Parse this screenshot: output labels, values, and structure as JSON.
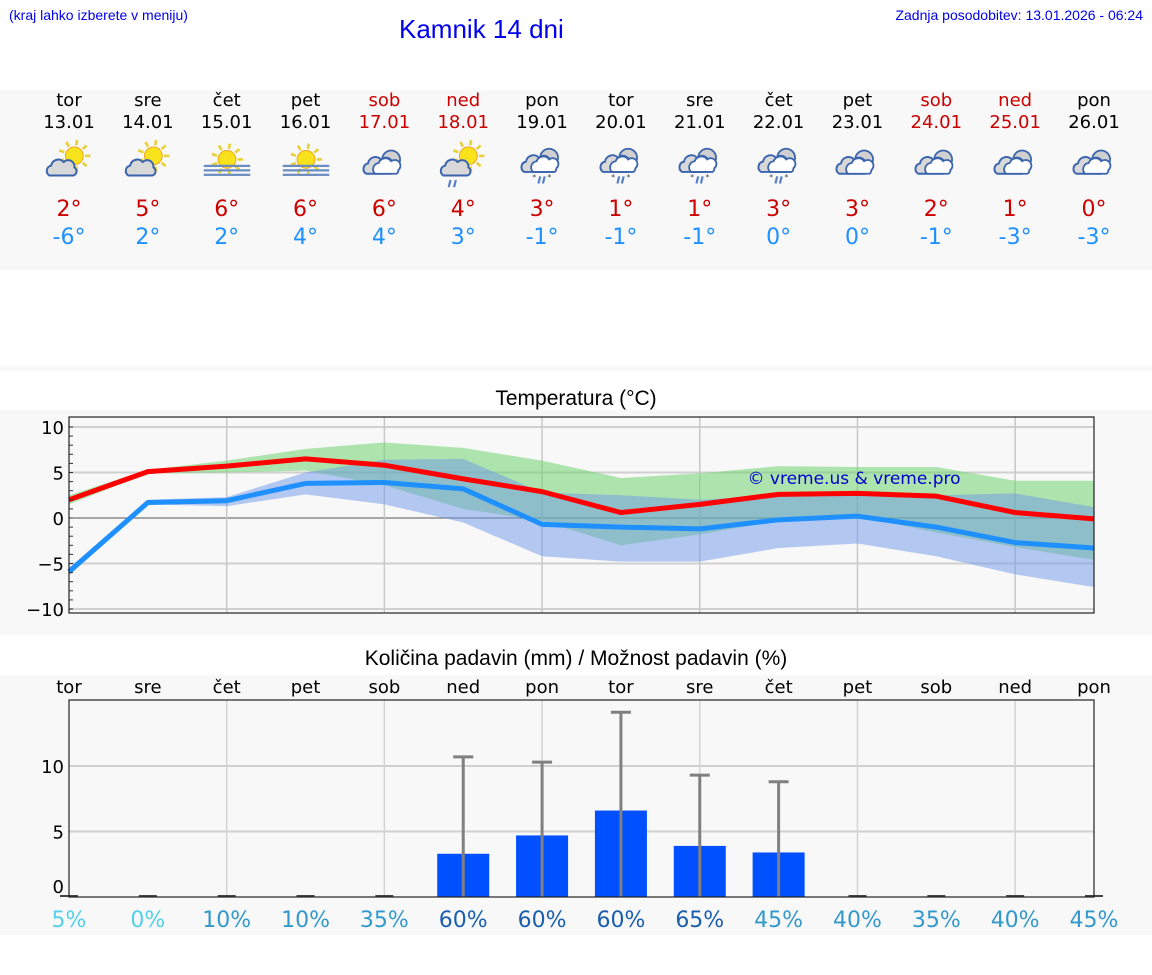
{
  "header": {
    "menu_hint": "(kraj lahko izberete v meniju)",
    "title": "Kamnik 14 dni",
    "last_update": "Zadnja posodobitev: 13.01.2026 - 06:24"
  },
  "colors": {
    "link_blue": "#0000ee",
    "max_temp_red": "#cc0000",
    "min_temp_blue": "#1e90ff",
    "max_line": "#ff0000",
    "min_line": "#1e90ff",
    "max_band": "#aee8ae",
    "min_band": "#adc8f2",
    "overlap_band": "#7ec9a8",
    "precip_bar": "#0050ff",
    "whisker": "#808080"
  },
  "days": [
    {
      "name": "tor",
      "date": "13.01",
      "weekend": false,
      "icon": "sun-cloud-icon",
      "max": "2°",
      "min": "-6°"
    },
    {
      "name": "sre",
      "date": "14.01",
      "weekend": false,
      "icon": "sun-cloud-icon",
      "max": "5°",
      "min": "2°"
    },
    {
      "name": "čet",
      "date": "15.01",
      "weekend": false,
      "icon": "sun-fog-icon",
      "max": "6°",
      "min": "2°"
    },
    {
      "name": "pet",
      "date": "16.01",
      "weekend": false,
      "icon": "sun-fog-icon",
      "max": "6°",
      "min": "4°"
    },
    {
      "name": "sob",
      "date": "17.01",
      "weekend": true,
      "icon": "cloudy-icon",
      "max": "6°",
      "min": "4°"
    },
    {
      "name": "ned",
      "date": "18.01",
      "weekend": true,
      "icon": "sun-cloud-rain-icon",
      "max": "4°",
      "min": "3°"
    },
    {
      "name": "pon",
      "date": "19.01",
      "weekend": false,
      "icon": "cloud-sleet-icon",
      "max": "3°",
      "min": "-1°"
    },
    {
      "name": "tor",
      "date": "20.01",
      "weekend": false,
      "icon": "cloud-sleet-icon",
      "max": "1°",
      "min": "-1°"
    },
    {
      "name": "sre",
      "date": "21.01",
      "weekend": false,
      "icon": "cloud-sleet-icon",
      "max": "1°",
      "min": "-1°"
    },
    {
      "name": "čet",
      "date": "22.01",
      "weekend": false,
      "icon": "cloud-sleet-icon",
      "max": "3°",
      "min": "0°"
    },
    {
      "name": "pet",
      "date": "23.01",
      "weekend": false,
      "icon": "cloudy-icon",
      "max": "3°",
      "min": "0°"
    },
    {
      "name": "sob",
      "date": "24.01",
      "weekend": true,
      "icon": "cloudy-icon",
      "max": "2°",
      "min": "-1°"
    },
    {
      "name": "ned",
      "date": "25.01",
      "weekend": true,
      "icon": "cloudy-icon",
      "max": "1°",
      "min": "-3°"
    },
    {
      "name": "pon",
      "date": "26.01",
      "weekend": false,
      "icon": "cloudy-icon",
      "max": "0°",
      "min": "-3°"
    }
  ],
  "temperature_chart": {
    "title": "Temperatura (°C)",
    "watermark": "© vreme.us & vreme.pro"
  },
  "precip_chart": {
    "title": "Količina padavin (mm) / Možnost padavin (%)"
  },
  "chart_data": [
    {
      "type": "line",
      "title": "Temperatura (°C)",
      "xlabel": "",
      "ylabel": "",
      "ylim": [
        -10.5,
        11
      ],
      "yticks": [
        -10,
        -5,
        0,
        5,
        10
      ],
      "ytick_labels": [
        "−10",
        "−5",
        "0",
        "5",
        "10"
      ],
      "grid": true,
      "categories": [
        "13.01",
        "14.01",
        "15.01",
        "16.01",
        "17.01",
        "18.01",
        "19.01",
        "20.01",
        "21.01",
        "22.01",
        "23.01",
        "24.01",
        "25.01",
        "26.01"
      ],
      "series": [
        {
          "name": "max",
          "color": "#ff0000",
          "values": [
            2.0,
            5.1,
            5.7,
            6.5,
            5.8,
            4.3,
            2.9,
            0.6,
            1.5,
            2.6,
            2.7,
            2.4,
            0.6,
            -0.1
          ]
        },
        {
          "name": "min",
          "color": "#1e90ff",
          "values": [
            -5.9,
            1.7,
            1.9,
            3.8,
            3.9,
            3.2,
            -0.7,
            -1.0,
            -1.2,
            -0.2,
            0.2,
            -1.0,
            -2.7,
            -3.3
          ]
        }
      ],
      "bands": [
        {
          "name": "max-range",
          "color": "#aee8ae",
          "upper": [
            2.5,
            5.3,
            6.3,
            7.6,
            8.3,
            7.7,
            6.3,
            4.4,
            4.9,
            5.7,
            5.6,
            5.6,
            4.1,
            4.1
          ],
          "lower": [
            1.5,
            4.9,
            5.0,
            5.2,
            3.6,
            1.0,
            -0.3,
            -3.0,
            -1.8,
            -0.3,
            0.2,
            -1.6,
            -3.2,
            -4.6
          ]
        },
        {
          "name": "min-range",
          "color": "#adc8f2",
          "upper": [
            -5.5,
            2.0,
            2.3,
            5.0,
            6.4,
            6.5,
            2.8,
            2.5,
            2.0,
            2.5,
            2.5,
            2.5,
            2.7,
            1.2
          ],
          "lower": [
            -6.3,
            1.5,
            1.3,
            2.6,
            1.5,
            -0.5,
            -4.2,
            -4.8,
            -4.8,
            -3.3,
            -2.8,
            -4.2,
            -6.2,
            -7.6
          ]
        }
      ],
      "annotations": [
        "© vreme.us & vreme.pro"
      ]
    },
    {
      "type": "bar",
      "title": "Količina padavin (mm) / Možnost padavin (%)",
      "xlabel": "",
      "ylabel": "",
      "ylim": [
        0,
        15
      ],
      "yticks": [
        0,
        5,
        10
      ],
      "grid": true,
      "categories": [
        "tor",
        "sre",
        "čet",
        "pet",
        "sob",
        "ned",
        "pon",
        "tor",
        "sre",
        "čet",
        "pet",
        "sob",
        "ned",
        "pon"
      ],
      "series": [
        {
          "name": "Količina padavin (mm)",
          "color": "#0050ff",
          "values": [
            0,
            0,
            0,
            0,
            0,
            3.3,
            4.7,
            6.6,
            3.9,
            3.4,
            0,
            0,
            0,
            0
          ]
        },
        {
          "name": "Max (mm)",
          "color": "#808080",
          "values": [
            0,
            0,
            0,
            0,
            0,
            10.7,
            10.3,
            14.1,
            9.3,
            8.8,
            0,
            0,
            0,
            0
          ]
        }
      ],
      "probability_labels": [
        "5%",
        "0%",
        "10%",
        "10%",
        "35%",
        "60%",
        "60%",
        "60%",
        "65%",
        "45%",
        "40%",
        "35%",
        "40%",
        "45%"
      ],
      "probability_values": [
        5,
        0,
        10,
        10,
        35,
        60,
        60,
        60,
        65,
        45,
        40,
        35,
        40,
        45
      ]
    }
  ]
}
